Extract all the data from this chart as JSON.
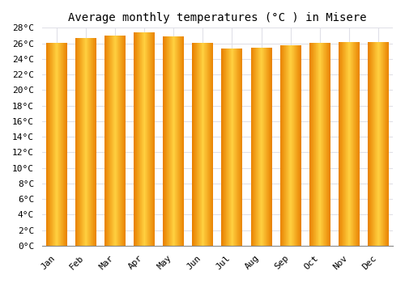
{
  "title": "Average monthly temperatures (°C ) in Misere",
  "months": [
    "Jan",
    "Feb",
    "Mar",
    "Apr",
    "May",
    "Jun",
    "Jul",
    "Aug",
    "Sep",
    "Oct",
    "Nov",
    "Dec"
  ],
  "values": [
    26.1,
    26.7,
    27.0,
    27.4,
    26.9,
    26.1,
    25.3,
    25.4,
    25.7,
    26.1,
    26.2,
    26.2
  ],
  "bar_color_left": "#E88000",
  "bar_color_center": "#FFD040",
  "bar_color_right": "#E88000",
  "ylim": [
    0,
    28
  ],
  "ytick_step": 2,
  "background_color": "#FFFFFF",
  "grid_color": "#E0E0E8",
  "title_fontsize": 10,
  "tick_fontsize": 8
}
